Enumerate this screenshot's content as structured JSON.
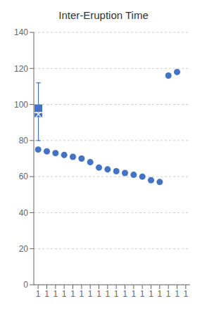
{
  "chart_data": {
    "type": "box",
    "title": "Inter-Eruption Time",
    "categories": [
      "1"
    ],
    "whisker_low": 80.0,
    "q1": 93.0,
    "median": 95.5,
    "q3": 100.0,
    "whisker_high": 112.0,
    "mean": 94.5,
    "outliers": [
      75,
      74,
      73,
      72,
      71,
      70,
      68,
      65,
      64,
      63,
      62,
      61,
      60,
      58,
      57,
      116,
      118
    ],
    "color": "#4472C4",
    "ylim": [
      0,
      140
    ],
    "yticks": [
      0,
      20,
      40,
      60,
      80,
      100,
      120,
      140
    ],
    "grid": true
  }
}
